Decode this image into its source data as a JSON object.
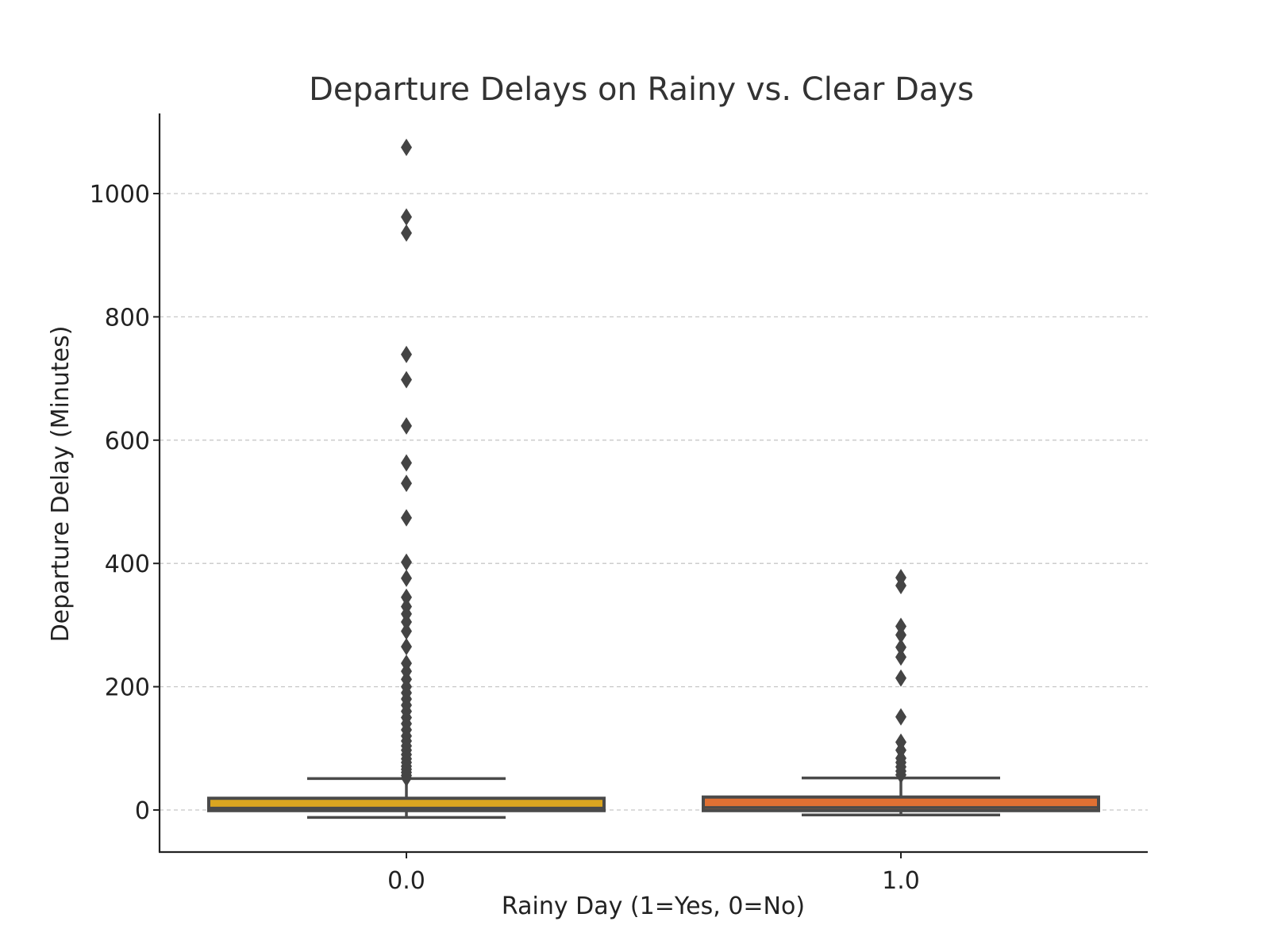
{
  "chart_data": {
    "type": "box",
    "title": "Departure Delays on Rainy vs. Clear Days",
    "xlabel": "Rainy Day (1=Yes, 0=No)",
    "ylabel": "Departure Delay (Minutes)",
    "categories": [
      "0.0",
      "1.0"
    ],
    "yticks": [
      0,
      200,
      400,
      600,
      800,
      1000
    ],
    "ylim": [
      -68,
      1130
    ],
    "grid": "horizontal dashed",
    "boxes": [
      {
        "category": "0.0",
        "color": "#DAA520",
        "whisker_low": -12,
        "q1": -1,
        "median": 3,
        "q3": 19,
        "whisker_high": 51,
        "outliers": [
          1075,
          962,
          936,
          739,
          698,
          623,
          563,
          530,
          474,
          402,
          376,
          345,
          330,
          318,
          305,
          290,
          265,
          238,
          225,
          212,
          200,
          190,
          180,
          170,
          160,
          150,
          140,
          130,
          120,
          112,
          104,
          97,
          90,
          83,
          77,
          71,
          66,
          61,
          56,
          52
        ]
      },
      {
        "category": "1.0",
        "color": "#E07033",
        "whisker_low": -8,
        "q1": -1,
        "median": 4,
        "q3": 21,
        "whisker_high": 52,
        "outliers": [
          377,
          364,
          298,
          284,
          264,
          248,
          214,
          151,
          110,
          97,
          84,
          77,
          70,
          63,
          57
        ]
      }
    ]
  }
}
